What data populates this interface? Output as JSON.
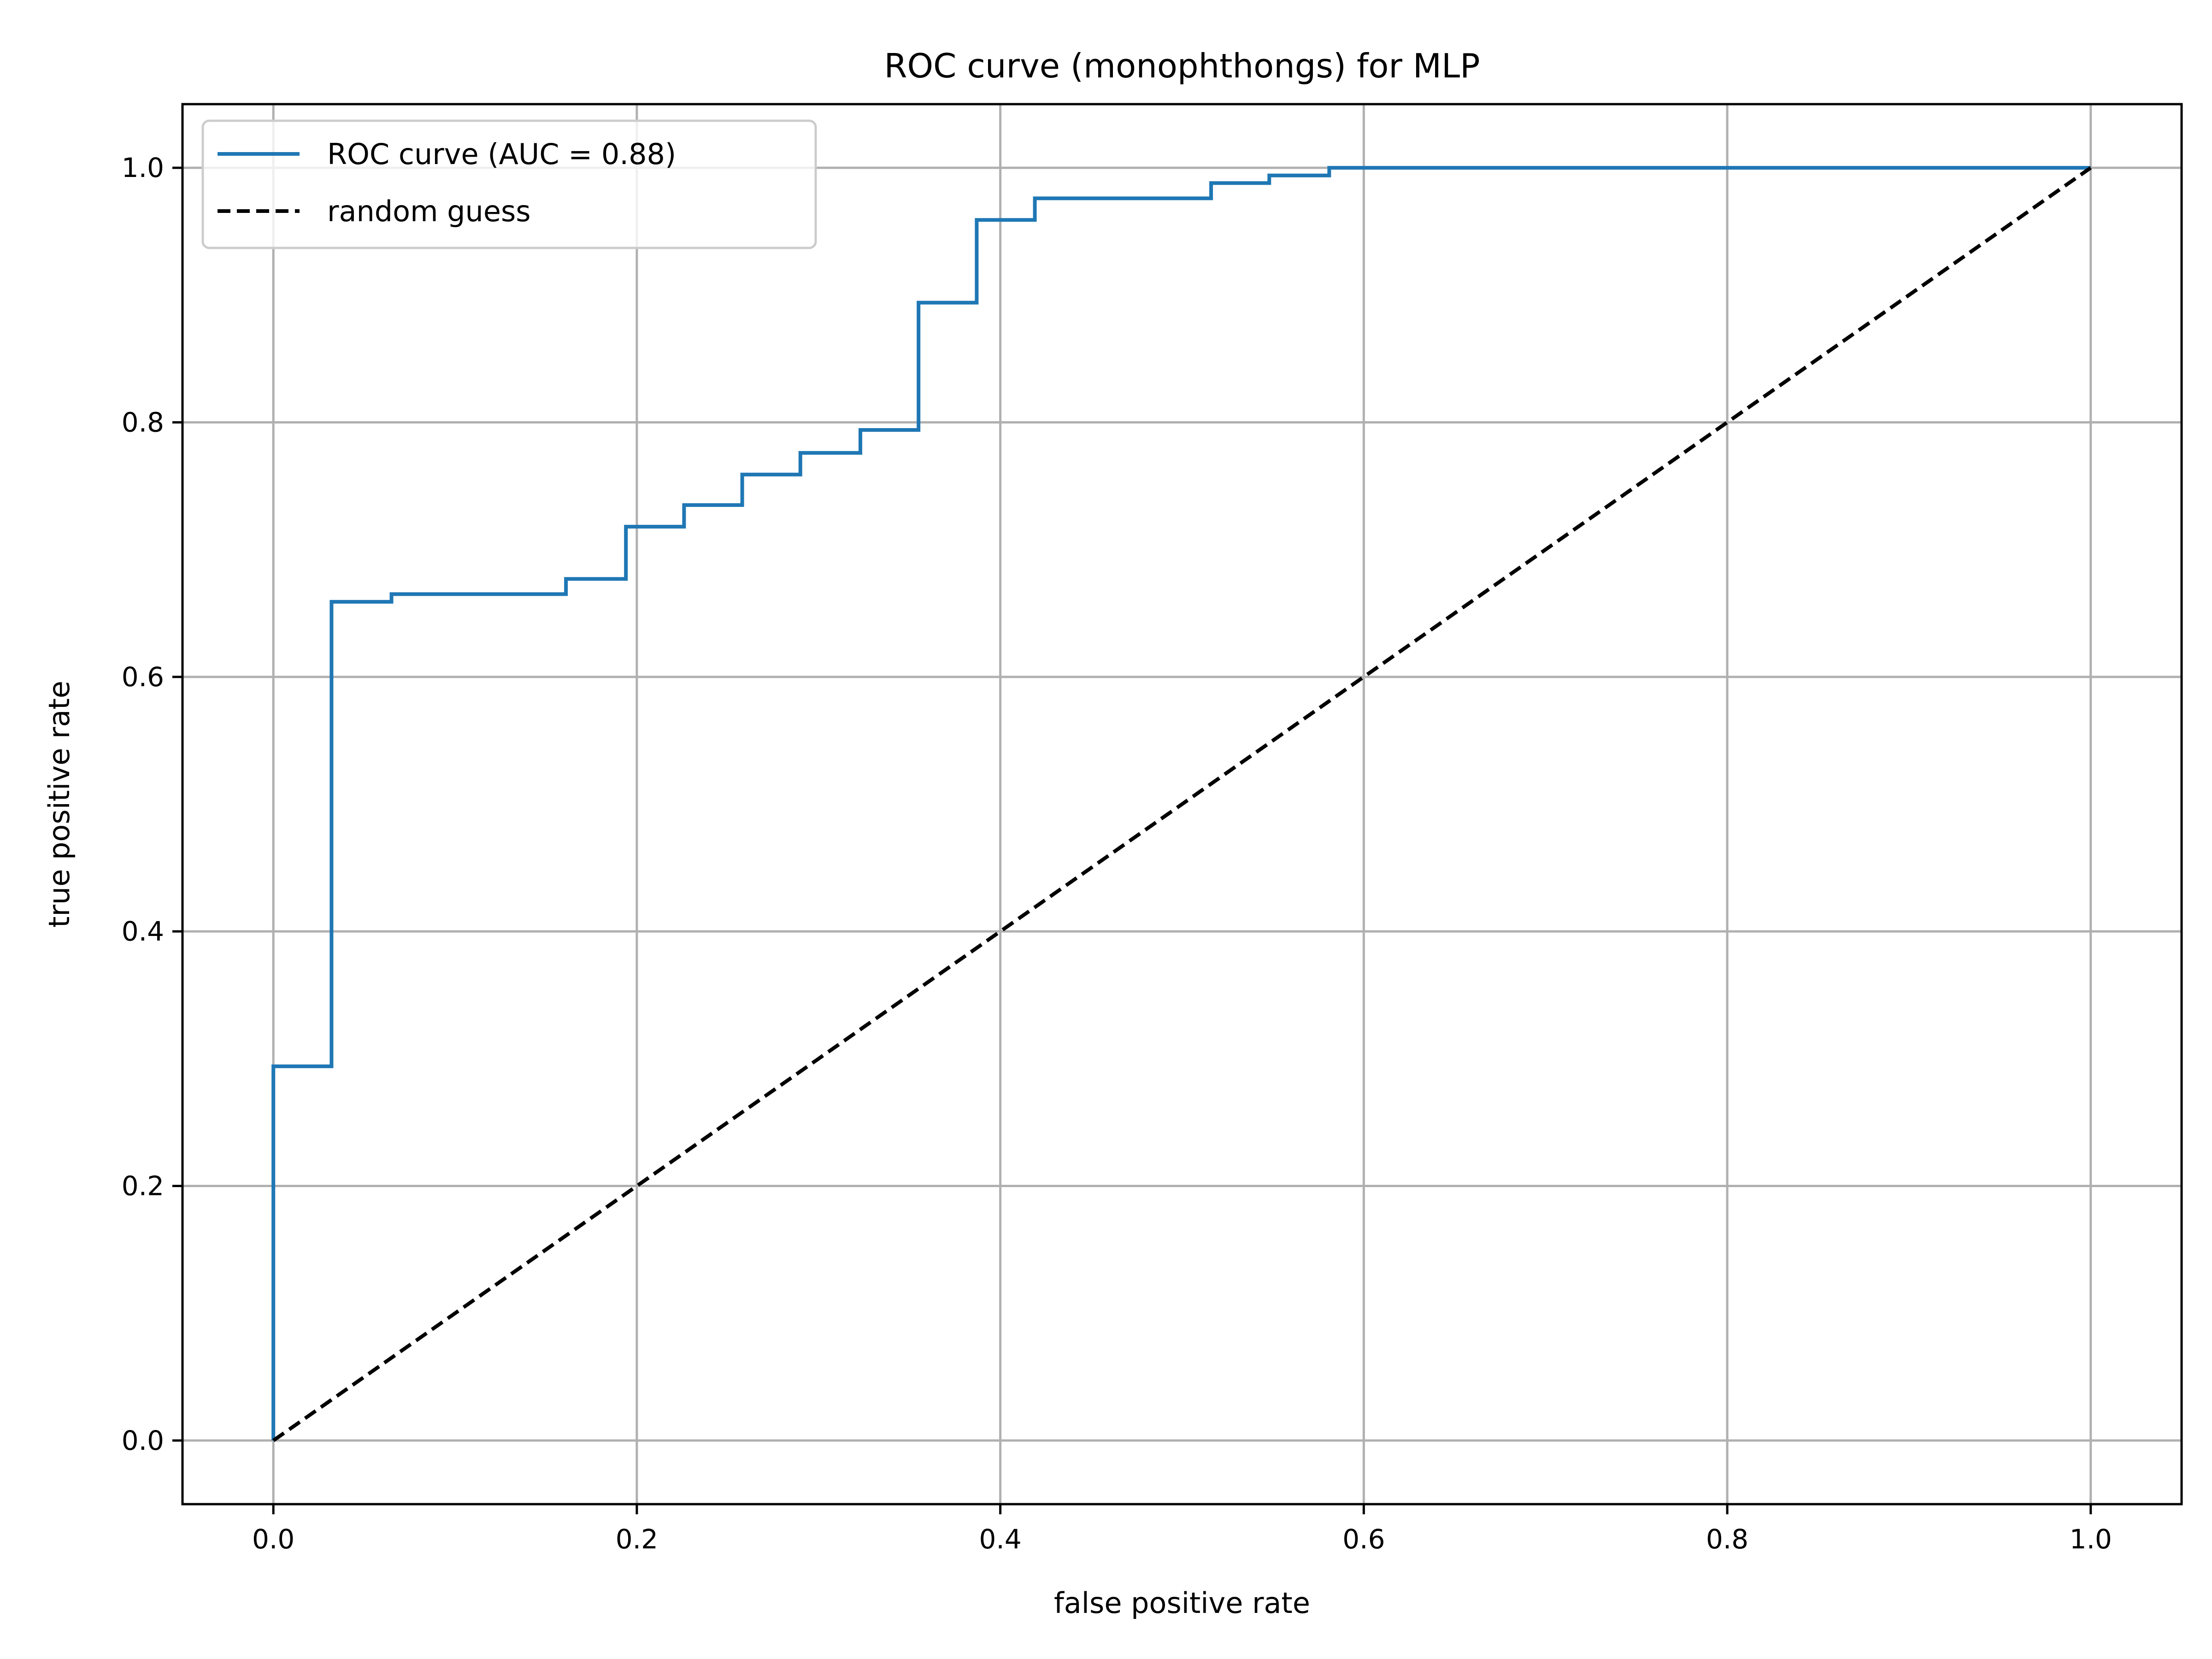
{
  "chart_data": {
    "type": "line",
    "title": "ROC curve (monophthongs) for MLP",
    "xlabel": "false positive rate",
    "ylabel": "true positive rate",
    "xlim": [
      -0.05,
      1.05
    ],
    "ylim": [
      -0.05,
      1.05
    ],
    "xticks": [
      0.0,
      0.2,
      0.4,
      0.6,
      0.8,
      1.0
    ],
    "yticks": [
      0.0,
      0.2,
      0.4,
      0.6,
      0.8,
      1.0
    ],
    "xtick_labels": [
      "0.0",
      "0.2",
      "0.4",
      "0.6",
      "0.8",
      "1.0"
    ],
    "ytick_labels": [
      "0.0",
      "0.2",
      "0.4",
      "0.6",
      "0.8",
      "1.0"
    ],
    "grid": true,
    "legend_position": "top-left",
    "series": [
      {
        "name": "ROC curve (AUC = 0.88)",
        "color": "#1f77b4",
        "style": "solid",
        "step": true,
        "x": [
          0.0,
          0.0,
          0.032,
          0.032,
          0.065,
          0.065,
          0.161,
          0.161,
          0.194,
          0.194,
          0.226,
          0.226,
          0.258,
          0.258,
          0.29,
          0.29,
          0.323,
          0.323,
          0.355,
          0.355,
          0.387,
          0.387,
          0.419,
          0.419,
          0.516,
          0.516,
          0.548,
          0.548,
          0.581,
          0.581,
          1.0
        ],
        "y": [
          0.0,
          0.294,
          0.294,
          0.659,
          0.659,
          0.665,
          0.665,
          0.677,
          0.677,
          0.718,
          0.718,
          0.735,
          0.735,
          0.759,
          0.759,
          0.776,
          0.776,
          0.794,
          0.794,
          0.894,
          0.894,
          0.959,
          0.959,
          0.976,
          0.976,
          0.988,
          0.988,
          0.994,
          0.994,
          1.0,
          1.0
        ]
      },
      {
        "name": "random guess",
        "color": "#000000",
        "style": "dashed",
        "x": [
          0.0,
          1.0
        ],
        "y": [
          0.0,
          1.0
        ]
      }
    ]
  }
}
